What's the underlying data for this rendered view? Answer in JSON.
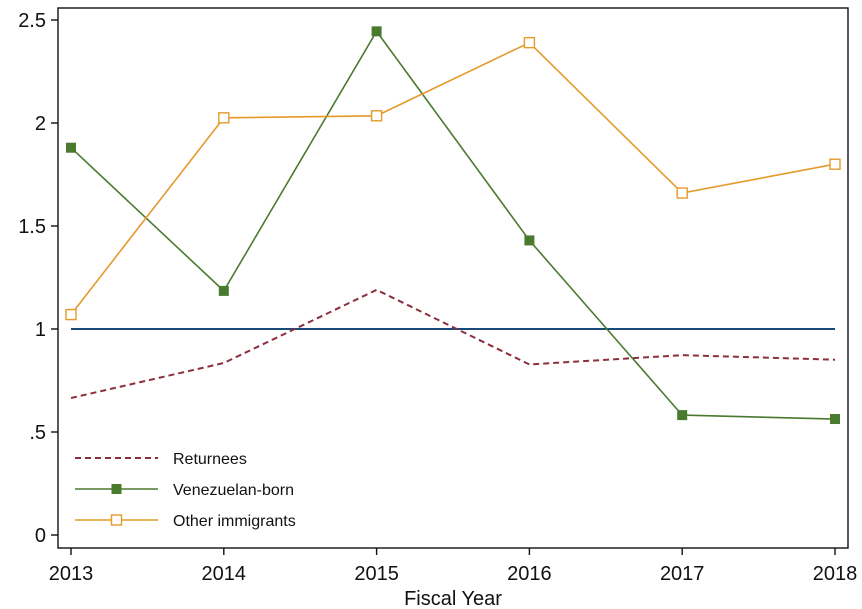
{
  "chart_data": {
    "type": "line",
    "title": "",
    "xlabel": "Fiscal Year",
    "ylabel": "",
    "x": [
      2013,
      2014,
      2015,
      2016,
      2017,
      2018
    ],
    "xlim": [
      2013,
      2018
    ],
    "ylim": [
      0,
      2.5
    ],
    "xticks": [
      {
        "value": 2013,
        "label": "2013"
      },
      {
        "value": 2014,
        "label": "2014"
      },
      {
        "value": 2015,
        "label": "2015"
      },
      {
        "value": 2016,
        "label": "2016"
      },
      {
        "value": 2017,
        "label": "2017"
      },
      {
        "value": 2018,
        "label": "2018"
      }
    ],
    "yticks": [
      {
        "value": 0,
        "label": "0"
      },
      {
        "value": 0.5,
        "label": ".5"
      },
      {
        "value": 1,
        "label": "1"
      },
      {
        "value": 1.5,
        "label": "1.5"
      },
      {
        "value": 2,
        "label": "2"
      },
      {
        "value": 2.5,
        "label": "2.5"
      }
    ],
    "grid": false,
    "legend_position": "bottom-left",
    "reference_line": {
      "y": 1,
      "color": "#1a4a7a"
    },
    "series": [
      {
        "name": "Returnees",
        "values": [
          0.665,
          0.835,
          1.19,
          0.828,
          0.873,
          0.851
        ],
        "color": "#8b2f3c",
        "style": "dashed",
        "marker": "none"
      },
      {
        "name": "Venezuelan-born",
        "values": [
          1.88,
          1.185,
          2.445,
          1.43,
          0.582,
          0.563
        ],
        "color": "#4a7a2e",
        "style": "solid",
        "marker": "filled-square"
      },
      {
        "name": "Other immigrants",
        "values": [
          1.07,
          2.025,
          2.035,
          2.39,
          1.66,
          1.8
        ],
        "color": "#e59a2a",
        "style": "solid",
        "marker": "hollow-square"
      }
    ]
  }
}
